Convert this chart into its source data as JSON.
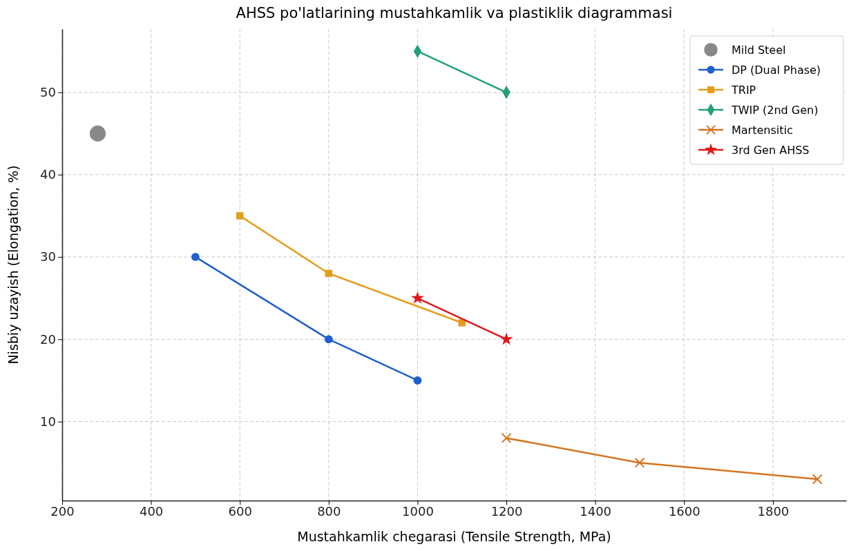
{
  "chart_data": {
    "type": "line",
    "title": "AHSS po'latlarining mustahkamlik va plastiklik diagrammasi",
    "xlabel": "Mustahkamlik chegarasi (Tensile Strength, MPa)",
    "ylabel": "Nisbiy uzayish (Elongation, %)",
    "xlim": [
      200,
      1965
    ],
    "xticks": [
      200,
      400,
      600,
      800,
      1000,
      1200,
      1400,
      1600,
      1800
    ],
    "ylim": [
      0.4,
      57.7
    ],
    "yticks": [
      10,
      20,
      30,
      40,
      50
    ],
    "grid": true,
    "legend": "top right",
    "line_style": "solid",
    "series": [
      {
        "name": "Mild Steel",
        "type": "scatter",
        "marker": "circle",
        "color": "#888888",
        "x": [
          280
        ],
        "values": [
          45
        ]
      },
      {
        "name": "DP (Dual Phase)",
        "marker": "circle",
        "color": "#1f5fcf",
        "x": [
          500,
          800,
          1000
        ],
        "values": [
          30,
          20,
          15
        ]
      },
      {
        "name": "TRIP",
        "marker": "square",
        "color": "#e39d1c",
        "x": [
          600,
          800,
          1100
        ],
        "values": [
          35,
          28,
          22
        ]
      },
      {
        "name": "TWIP (2nd Gen)",
        "marker": "diamond",
        "color": "#22a07a",
        "x": [
          1000,
          1200
        ],
        "values": [
          55,
          50
        ]
      },
      {
        "name": "Martensitic",
        "marker": "cross",
        "color": "#d6731f",
        "x": [
          1200,
          1500,
          1900
        ],
        "values": [
          8,
          5,
          3
        ]
      },
      {
        "name": "3rd Gen AHSS",
        "marker": "star",
        "color": "#e0181b",
        "x": [
          1000,
          1200
        ],
        "values": [
          25,
          20
        ]
      }
    ]
  }
}
